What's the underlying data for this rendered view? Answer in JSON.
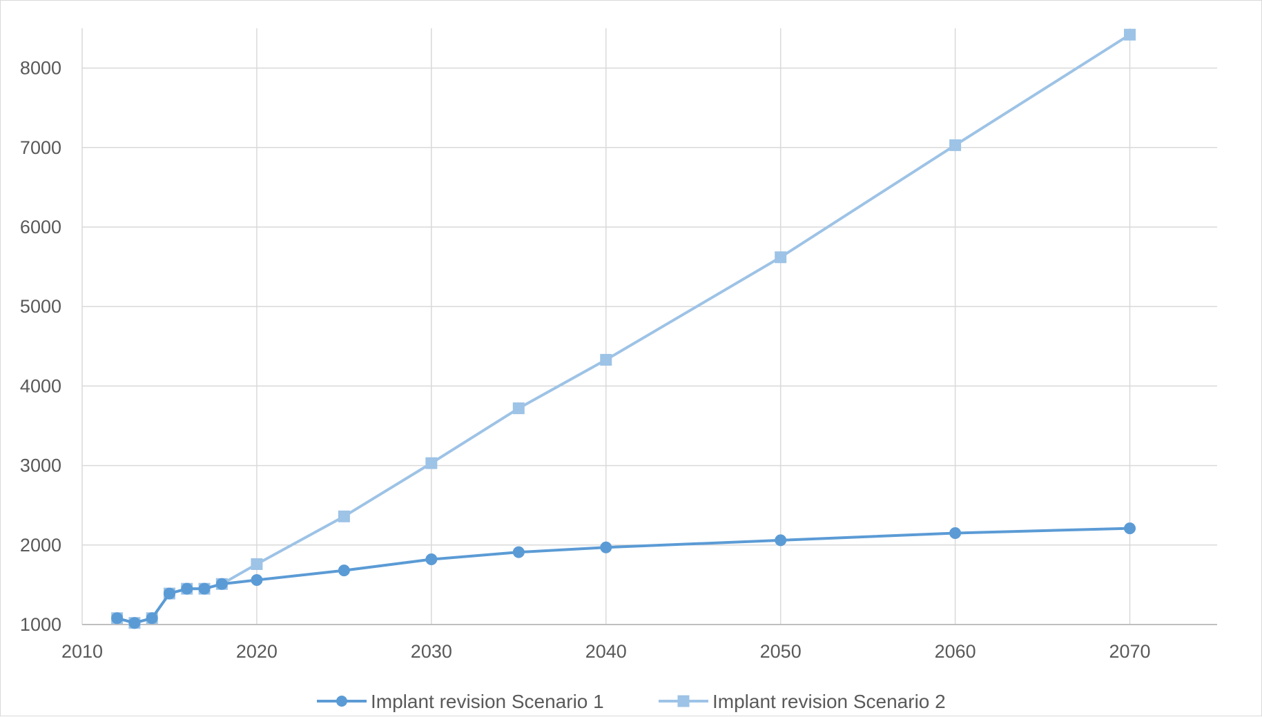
{
  "chart_data": {
    "type": "scatter",
    "title": "",
    "xlabel": "",
    "ylabel": "",
    "xlim": [
      2010,
      2075
    ],
    "ylim": [
      1000,
      8500
    ],
    "x_ticks": [
      2010,
      2020,
      2030,
      2040,
      2050,
      2060,
      2070
    ],
    "y_ticks": [
      1000,
      2000,
      3000,
      4000,
      5000,
      6000,
      7000,
      8000
    ],
    "grid": true,
    "legend_position": "bottom",
    "series": [
      {
        "name": "Implant revision Scenario 1",
        "marker": "circle",
        "color": "#5b9bd5",
        "points": [
          [
            2012,
            1080
          ],
          [
            2013,
            1020
          ],
          [
            2014,
            1080
          ],
          [
            2015,
            1390
          ],
          [
            2016,
            1450
          ],
          [
            2017,
            1450
          ],
          [
            2018,
            1510
          ],
          [
            2020,
            1560
          ],
          [
            2025,
            1680
          ],
          [
            2030,
            1820
          ],
          [
            2035,
            1910
          ],
          [
            2040,
            1970
          ],
          [
            2050,
            2060
          ],
          [
            2060,
            2150
          ],
          [
            2070,
            2210
          ]
        ]
      },
      {
        "name": "Implant revision Scenario 2",
        "marker": "square",
        "color": "#9dc3e6",
        "points": [
          [
            2012,
            1080
          ],
          [
            2013,
            1020
          ],
          [
            2014,
            1080
          ],
          [
            2015,
            1390
          ],
          [
            2016,
            1450
          ],
          [
            2017,
            1450
          ],
          [
            2018,
            1510
          ],
          [
            2020,
            1760
          ],
          [
            2025,
            2360
          ],
          [
            2030,
            3030
          ],
          [
            2035,
            3720
          ],
          [
            2040,
            4330
          ],
          [
            2050,
            5620
          ],
          [
            2060,
            7030
          ],
          [
            2070,
            8420
          ]
        ]
      }
    ]
  }
}
